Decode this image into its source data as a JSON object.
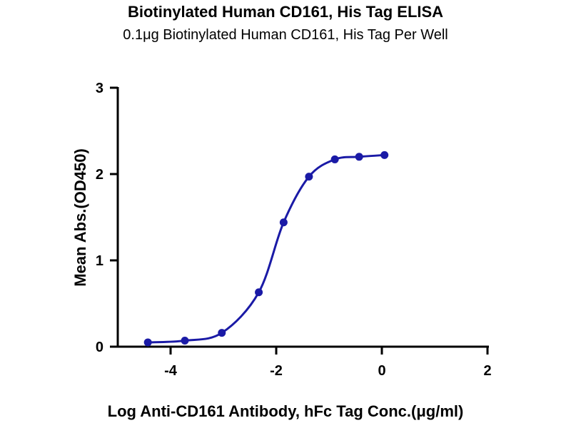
{
  "chart_data": {
    "type": "scatter",
    "title": "Biotinylated Human CD161, His Tag ELISA",
    "subtitle": "0.1μg Biotinylated Human CD161, His Tag Per Well",
    "xlabel": "Log Anti-CD161 Antibody, hFc Tag Conc.(μg/ml)",
    "ylabel": "Mean Abs.(OD450)",
    "xlim": [
      -5,
      2
    ],
    "ylim": [
      0,
      3
    ],
    "xticks": [
      -4,
      -2,
      0,
      2
    ],
    "yticks": [
      0,
      1,
      2,
      3
    ],
    "grid": false,
    "color": "#1a1aa6",
    "series": [
      {
        "name": "Mean Abs.(OD450)",
        "x": [
          -4.43,
          -3.73,
          -3.03,
          -2.33,
          -1.86,
          -1.38,
          -0.89,
          -0.43,
          0.05
        ],
        "y": [
          0.05,
          0.07,
          0.16,
          0.63,
          1.44,
          1.97,
          2.17,
          2.2,
          2.22
        ],
        "fit": "sigmoidal curve"
      }
    ]
  }
}
